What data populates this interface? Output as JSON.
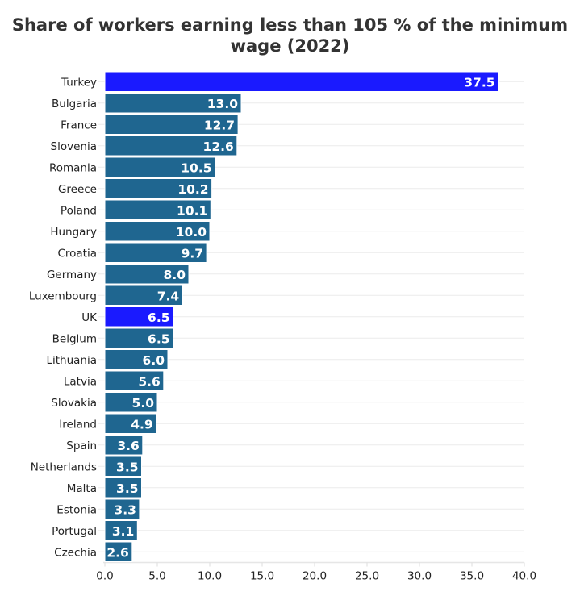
{
  "chart_data": {
    "type": "bar",
    "orientation": "horizontal",
    "title": "Share of workers earning less than 105 % of the minimum wage (2022)",
    "categories": [
      "Turkey",
      "Bulgaria",
      "France",
      "Slovenia",
      "Romania",
      "Greece",
      "Poland",
      "Hungary",
      "Croatia",
      "Germany",
      "Luxembourg",
      "UK",
      "Belgium",
      "Lithuania",
      "Latvia",
      "Slovakia",
      "Ireland",
      "Spain",
      "Netherlands",
      "Malta",
      "Estonia",
      "Portugal",
      "Czechia"
    ],
    "values": [
      37.5,
      13.0,
      12.7,
      12.6,
      10.5,
      10.2,
      10.1,
      10.0,
      9.7,
      8.0,
      7.4,
      6.5,
      6.5,
      6.0,
      5.6,
      5.0,
      4.9,
      3.6,
      3.5,
      3.5,
      3.3,
      3.1,
      2.6
    ],
    "highlighted": [
      "Turkey",
      "UK"
    ],
    "xlim": [
      0,
      40
    ],
    "xticks": [
      "0.0",
      "5.0",
      "10.0",
      "15.0",
      "20.0",
      "25.0",
      "30.0",
      "35.0",
      "40.0"
    ],
    "grid": true,
    "colors": {
      "default": "#1f6690",
      "highlight": "#1a1aff"
    }
  }
}
